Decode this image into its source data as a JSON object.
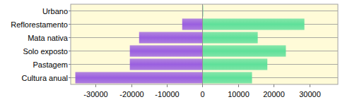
{
  "chart_data": {
    "type": "bar",
    "orientation": "horizontal",
    "stacked": true,
    "grid": true,
    "categories": [
      "Urbano",
      "Reflorestamento",
      "Mata nativa",
      "Solo exposto",
      "Pastagem",
      "Cultura anual"
    ],
    "series": [
      {
        "color": "#9a5fe0",
        "values": [
          -100,
          -5700,
          -17800,
          -20400,
          -20400,
          -35700
        ]
      },
      {
        "color": "#5fe09a",
        "values": [
          200,
          28600,
          15500,
          23400,
          18200,
          13900
        ]
      }
    ],
    "xlim": [
      -37000,
      38000
    ],
    "xticks": [
      -30000,
      -20000,
      -10000,
      0,
      10000,
      20000,
      30000
    ]
  }
}
